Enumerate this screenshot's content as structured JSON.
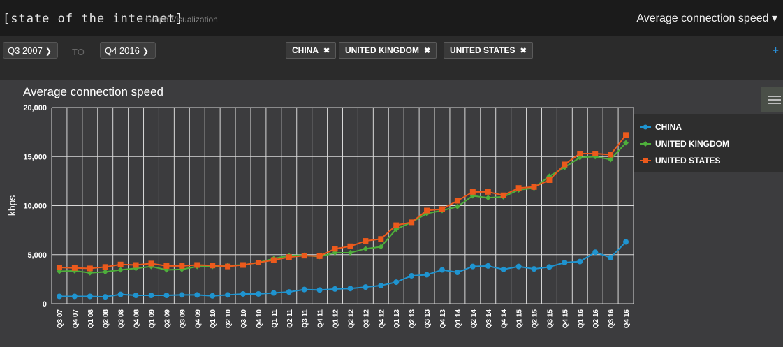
{
  "header": {
    "brand": "[state of the internet]",
    "subtitle": "Graph Visualization",
    "metric": "Average connection speed",
    "metric_chevron": "▾"
  },
  "filters": {
    "from": "Q3 2007",
    "to_label": "TO",
    "to": "Q4 2016",
    "chips": [
      "CHINA",
      "UNITED KINGDOM",
      "UNITED STATES"
    ],
    "add": "+"
  },
  "colors": {
    "china": "#1f94d0",
    "uk": "#4eaf3b",
    "us": "#ec5a1c"
  },
  "chart_data": {
    "type": "line",
    "title": "Average connection speed",
    "xlabel": "",
    "ylabel": "kbps",
    "ylim": [
      0,
      20000
    ],
    "yticks": [
      0,
      5000,
      10000,
      15000,
      20000
    ],
    "ytick_labels": [
      "0",
      "5,000",
      "10,000",
      "15,000",
      "20,000"
    ],
    "grid": true,
    "legend_position": "right",
    "categories": [
      "Q3 07",
      "Q4 07",
      "Q1 08",
      "Q2 08",
      "Q3 08",
      "Q4 08",
      "Q1 09",
      "Q2 09",
      "Q3 09",
      "Q4 09",
      "Q1 10",
      "Q2 10",
      "Q3 10",
      "Q4 10",
      "Q1 11",
      "Q2 11",
      "Q3 11",
      "Q4 11",
      "Q1 12",
      "Q2 12",
      "Q3 12",
      "Q4 12",
      "Q1 13",
      "Q2 13",
      "Q3 13",
      "Q4 13",
      "Q1 14",
      "Q2 14",
      "Q3 14",
      "Q4 14",
      "Q1 15",
      "Q2 15",
      "Q3 15",
      "Q4 15",
      "Q1 16",
      "Q2 16",
      "Q3 16",
      "Q4 16"
    ],
    "series": [
      {
        "name": "CHINA",
        "key": "china",
        "marker": "circle",
        "values": [
          750,
          750,
          750,
          700,
          950,
          850,
          850,
          850,
          900,
          900,
          800,
          900,
          1000,
          1000,
          1100,
          1200,
          1450,
          1400,
          1500,
          1550,
          1700,
          1850,
          2200,
          2850,
          2950,
          3450,
          3200,
          3800,
          3850,
          3500,
          3800,
          3550,
          3750,
          4200,
          4300,
          5250,
          4700,
          6300
        ]
      },
      {
        "name": "UNITED KINGDOM",
        "key": "uk",
        "marker": "diamond",
        "values": [
          3300,
          3350,
          3150,
          3250,
          3450,
          3600,
          3800,
          3450,
          3500,
          3800,
          3800,
          3900,
          3950,
          4200,
          4600,
          4900,
          4950,
          4800,
          5200,
          5200,
          5600,
          5800,
          7600,
          8300,
          9200,
          9500,
          9900,
          11000,
          10800,
          10900,
          11600,
          11800,
          13000,
          13900,
          14900,
          15000,
          14700,
          16400
        ]
      },
      {
        "name": "UNITED STATES",
        "key": "us",
        "marker": "square",
        "values": [
          3700,
          3650,
          3600,
          3750,
          4000,
          3950,
          4100,
          3850,
          3850,
          3950,
          3900,
          3800,
          3950,
          4200,
          4450,
          4750,
          4900,
          4850,
          5600,
          5850,
          6400,
          6600,
          8000,
          8300,
          9500,
          9650,
          10500,
          11400,
          11400,
          11050,
          11800,
          11900,
          12600,
          14200,
          15300,
          15300,
          15200,
          17200
        ]
      }
    ]
  }
}
